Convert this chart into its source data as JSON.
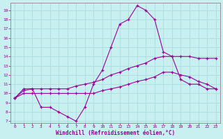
{
  "bg_color": "#c8f0f0",
  "line_color": "#990099",
  "xlabel": "Windchill (Refroidissement éolien,°C)",
  "xlim": [
    -0.5,
    23.5
  ],
  "ylim": [
    6.8,
    19.8
  ],
  "yticks": [
    7,
    8,
    9,
    10,
    11,
    12,
    13,
    14,
    15,
    16,
    17,
    18,
    19
  ],
  "xticks": [
    0,
    1,
    2,
    3,
    4,
    5,
    6,
    7,
    8,
    9,
    10,
    11,
    12,
    13,
    14,
    15,
    16,
    17,
    18,
    19,
    20,
    21,
    22,
    23
  ],
  "curve1_x": [
    0,
    1,
    2,
    3,
    4,
    5,
    6,
    7,
    8,
    9,
    10,
    11,
    12,
    13,
    14,
    15,
    16,
    17,
    18,
    19,
    20,
    21,
    22,
    23
  ],
  "curve1_y": [
    9.5,
    10.5,
    10.5,
    8.5,
    8.5,
    8.0,
    7.5,
    7.0,
    8.5,
    11.0,
    12.5,
    15.0,
    17.5,
    18.0,
    19.5,
    19.0,
    18.0,
    14.5,
    14.0,
    11.5,
    11.0,
    11.0,
    10.5,
    10.5
  ],
  "curve2_x": [
    0,
    1,
    2,
    3,
    4,
    5,
    6,
    7,
    8,
    9,
    10,
    11,
    12,
    13,
    14,
    15,
    16,
    17,
    18,
    19,
    20,
    21,
    22,
    23
  ],
  "curve2_y": [
    9.5,
    10.3,
    10.5,
    10.5,
    10.5,
    10.5,
    10.5,
    10.8,
    11.0,
    11.2,
    11.5,
    12.0,
    12.3,
    12.7,
    13.0,
    13.3,
    13.8,
    14.0,
    14.0,
    14.0,
    14.0,
    13.8,
    13.8,
    13.8
  ],
  "curve3_x": [
    0,
    1,
    2,
    3,
    4,
    5,
    6,
    7,
    8,
    9,
    10,
    11,
    12,
    13,
    14,
    15,
    16,
    17,
    18,
    19,
    20,
    21,
    22,
    23
  ],
  "curve3_y": [
    9.5,
    10.0,
    10.0,
    10.0,
    10.0,
    10.0,
    10.0,
    10.0,
    10.0,
    10.0,
    10.3,
    10.5,
    10.7,
    11.0,
    11.3,
    11.5,
    11.8,
    12.3,
    12.3,
    12.0,
    11.8,
    11.3,
    11.0,
    10.5
  ]
}
